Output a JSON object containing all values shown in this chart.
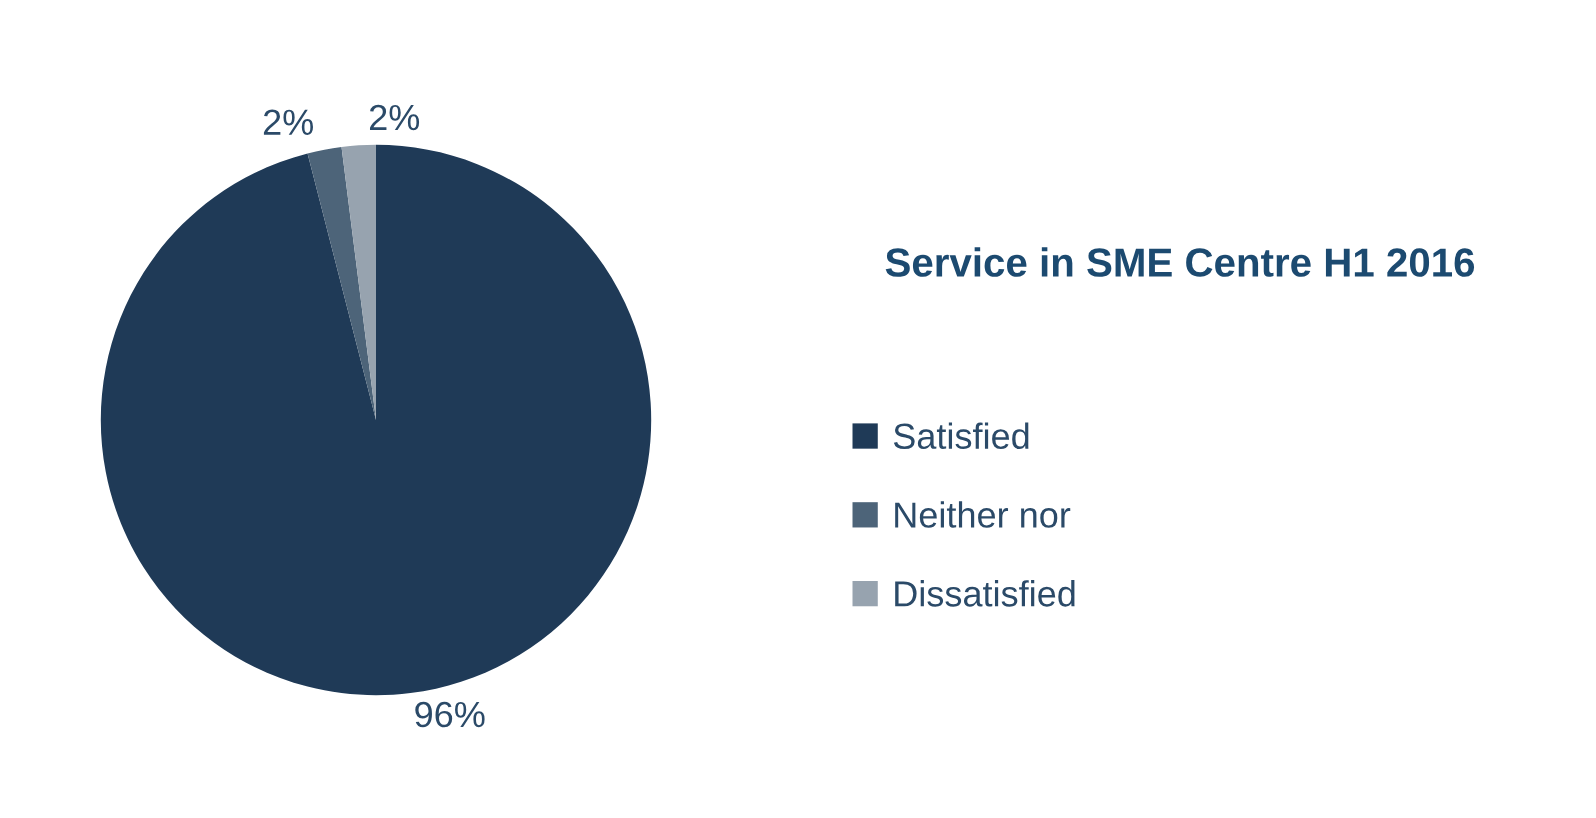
{
  "chart_data": {
    "type": "pie",
    "title": "Service in SME Centre H1 2016",
    "categories": [
      "Satisfied",
      "Neither nor",
      "Dissatisfied"
    ],
    "values": [
      96,
      2,
      2
    ],
    "value_labels": [
      "96%",
      "2%",
      "2%"
    ],
    "colors": [
      "#1f3a57",
      "#4d6479",
      "#97a3af"
    ],
    "legend": "right"
  }
}
